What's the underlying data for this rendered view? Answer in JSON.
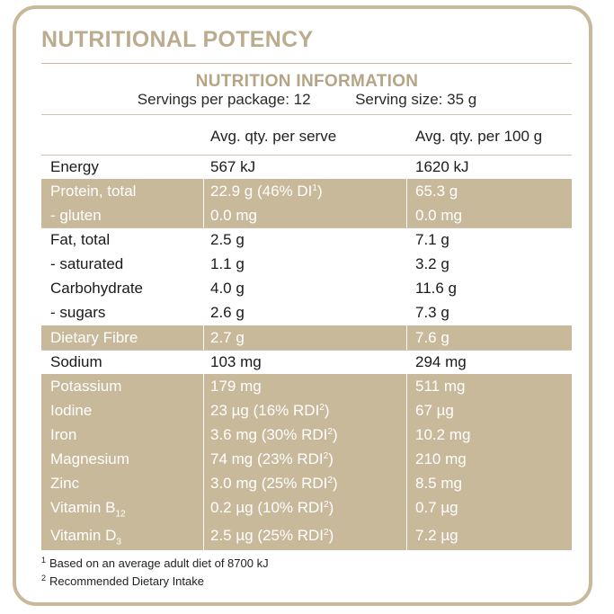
{
  "main_title": "NUTRITIONAL POTENCY",
  "panel_title": "NUTRITION INFORMATION",
  "servings_per_package_label": "Servings per package:",
  "servings_per_package_value": "12",
  "serving_size_label": "Serving size:",
  "serving_size_value": "35 g",
  "columns": {
    "per_serve": "Avg. qty. per serve",
    "per_100g": "Avg. qty. per 100 g"
  },
  "rows": [
    {
      "name": "Energy",
      "serve": "567 kJ",
      "per100": "1620 kJ"
    },
    {
      "name": "Protein, total",
      "serve": "22.9 g (46% DI",
      "serve_sup": "1",
      "serve_tail": ")",
      "per100": "65.3 g"
    },
    {
      "name": "- gluten",
      "serve": "0.0 mg",
      "per100": "0.0 mg"
    },
    {
      "name": "Fat, total",
      "serve": "2.5 g",
      "per100": "7.1 g"
    },
    {
      "name": "- saturated",
      "serve": "1.1 g",
      "per100": "3.2 g"
    },
    {
      "name": "Carbohydrate",
      "serve": "4.0 g",
      "per100": "11.6 g"
    },
    {
      "name": "- sugars",
      "serve": "2.6 g",
      "per100": "7.3 g"
    },
    {
      "name": "Dietary Fibre",
      "serve": "2.7 g",
      "per100": "7.6 g"
    },
    {
      "name": "Sodium",
      "serve": "103 mg",
      "per100": "294 mg"
    },
    {
      "name": "Potassium",
      "serve": "179 mg",
      "per100": "511 mg"
    },
    {
      "name": "Iodine",
      "serve": "23 µg (16% RDI",
      "serve_sup": "2",
      "serve_tail": ")",
      "per100": "67 µg"
    },
    {
      "name": "Iron",
      "serve": "3.6 mg (30% RDI",
      "serve_sup": "2",
      "serve_tail": ")",
      "per100": "10.2 mg"
    },
    {
      "name": "Magnesium",
      "serve": "74 mg (23% RDI",
      "serve_sup": "2",
      "serve_tail": ")",
      "per100": "210 mg"
    },
    {
      "name": "Zinc",
      "serve": "3.0 mg (25% RDI",
      "serve_sup": "2",
      "serve_tail": ")",
      "per100": "8.5 mg"
    },
    {
      "name": "Vitamin B",
      "name_sub": "12",
      "serve": "0.2 µg (10% RDI",
      "serve_sup": "2",
      "serve_tail": ")",
      "per100": "0.7 µg"
    },
    {
      "name": "Vitamin D",
      "name_sub": "3",
      "serve": "2.5 µg (25% RDI",
      "serve_sup": "2",
      "serve_tail": ")",
      "per100": "7.2 µg"
    }
  ],
  "footnotes": [
    {
      "mark": "1",
      "text": "Based on an average adult diet of 8700 kJ"
    },
    {
      "mark": "2",
      "text": "Recommended Dietary Intake"
    }
  ],
  "colors": {
    "accent": "#c8b99b",
    "title": "#bcac8e"
  }
}
